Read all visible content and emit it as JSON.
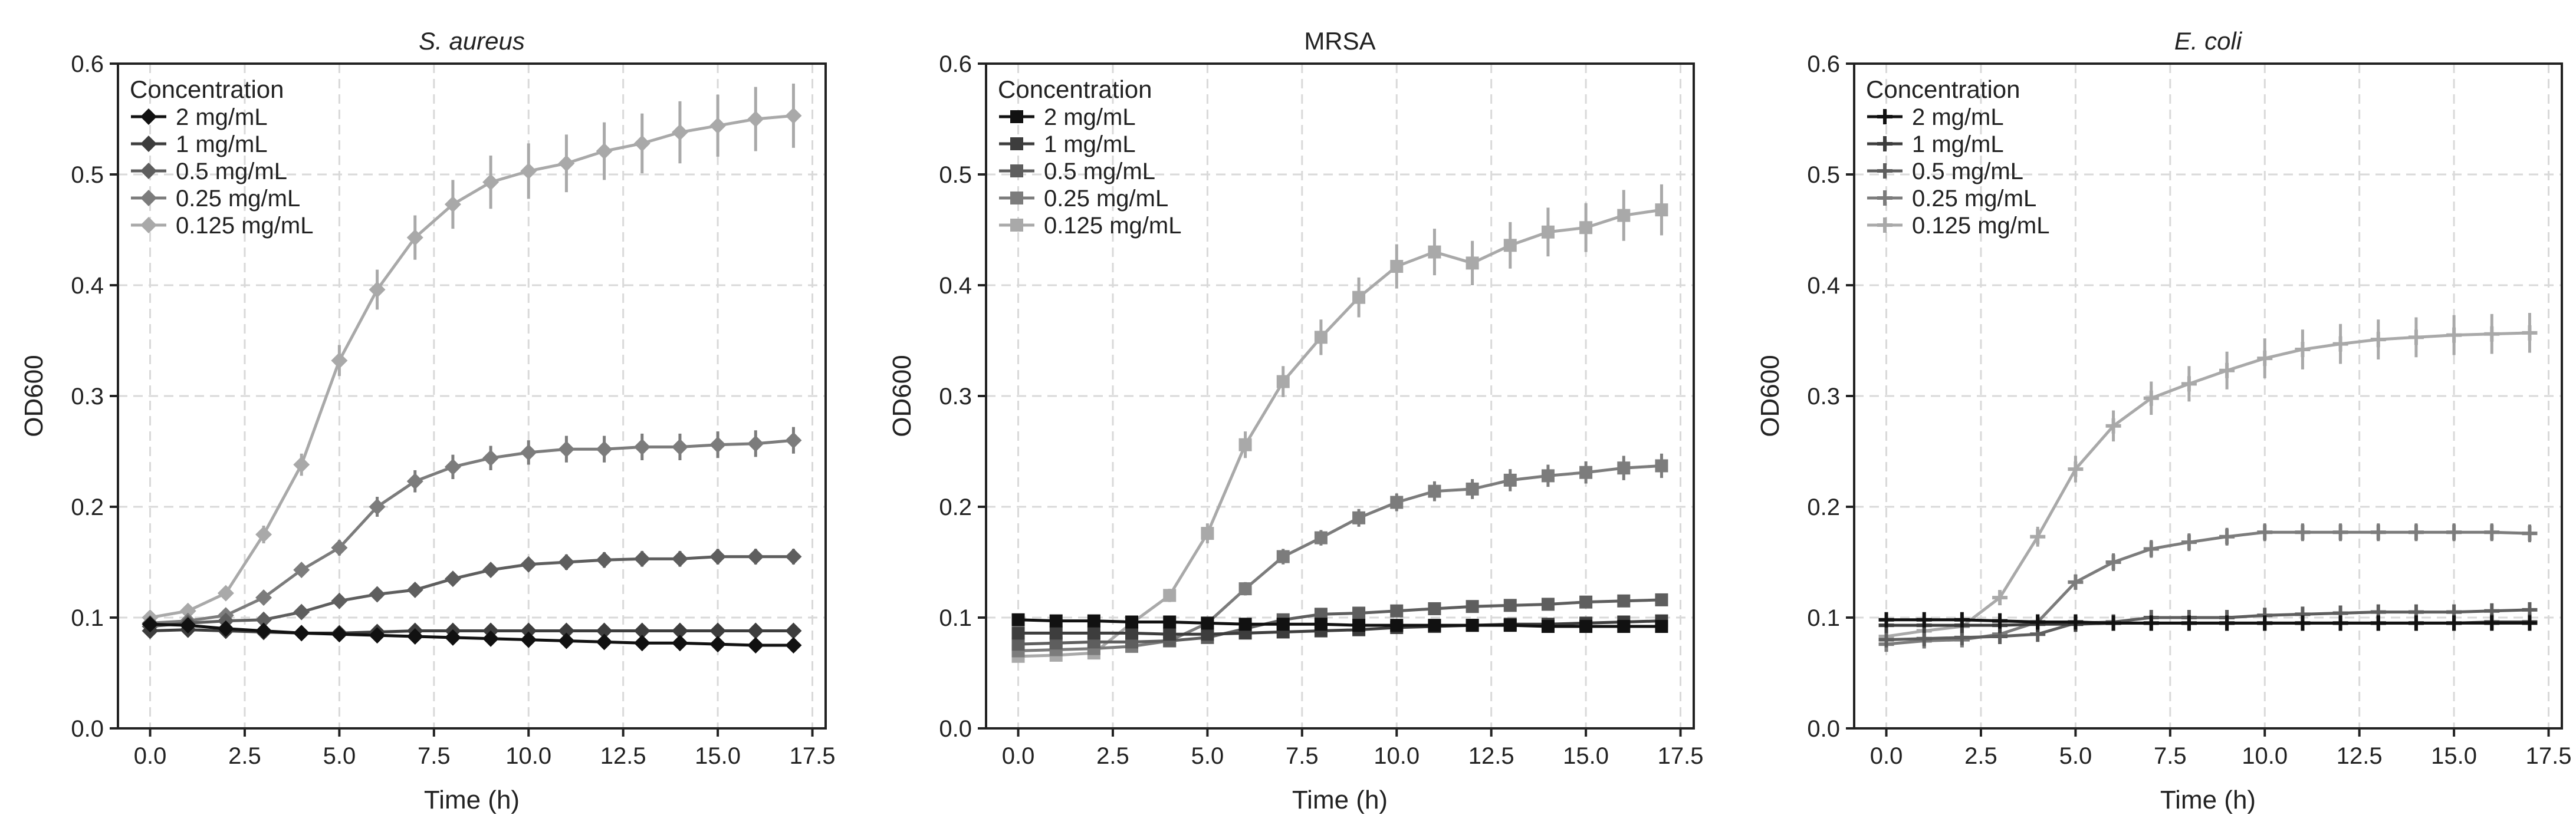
{
  "chart_data": [
    {
      "type": "line",
      "title": "S. aureus",
      "title_italic": true,
      "xlabel": "Time (h)",
      "ylabel": "OD600",
      "xlim": [
        -0.85,
        17.85
      ],
      "ylim": [
        0,
        0.6
      ],
      "xticks": [
        "0.0",
        "2.5",
        "5.0",
        "7.5",
        "10.0",
        "12.5",
        "15.0",
        "17.5"
      ],
      "yticks": [
        "0.0",
        "0.1",
        "0.2",
        "0.3",
        "0.4",
        "0.5",
        "0.6"
      ],
      "grid": true,
      "legend_title": "Concentration",
      "legend_position": "top-left",
      "marker": "diamond",
      "x": [
        0,
        1,
        2,
        3,
        4,
        5,
        6,
        7,
        8,
        9,
        10,
        11,
        12,
        13,
        14,
        15,
        16,
        17
      ],
      "series": [
        {
          "name": "2 mg/mL",
          "color": "#111111",
          "values": [
            0.094,
            0.093,
            0.09,
            0.088,
            0.086,
            0.085,
            0.084,
            0.083,
            0.082,
            0.081,
            0.08,
            0.079,
            0.078,
            0.077,
            0.077,
            0.076,
            0.075,
            0.075
          ],
          "errors": [
            0.004,
            0.004,
            0.004,
            0.003,
            0.003,
            0.003,
            0.003,
            0.003,
            0.003,
            0.003,
            0.003,
            0.003,
            0.003,
            0.003,
            0.003,
            0.003,
            0.003,
            0.003
          ]
        },
        {
          "name": "1 mg/mL",
          "color": "#3d3d3d",
          "values": [
            0.088,
            0.089,
            0.088,
            0.087,
            0.086,
            0.086,
            0.087,
            0.088,
            0.088,
            0.088,
            0.088,
            0.088,
            0.088,
            0.088,
            0.088,
            0.088,
            0.088,
            0.088
          ],
          "errors": [
            0.003,
            0.003,
            0.003,
            0.003,
            0.003,
            0.003,
            0.003,
            0.003,
            0.003,
            0.003,
            0.003,
            0.003,
            0.003,
            0.003,
            0.003,
            0.003,
            0.003,
            0.003
          ]
        },
        {
          "name": "0.5 mg/mL",
          "color": "#5e5e5e",
          "values": [
            0.092,
            0.095,
            0.097,
            0.098,
            0.105,
            0.115,
            0.121,
            0.125,
            0.135,
            0.143,
            0.148,
            0.15,
            0.152,
            0.153,
            0.153,
            0.155,
            0.155,
            0.155
          ],
          "errors": [
            0.004,
            0.004,
            0.004,
            0.004,
            0.005,
            0.005,
            0.005,
            0.005,
            0.006,
            0.006,
            0.006,
            0.007,
            0.007,
            0.007,
            0.007,
            0.007,
            0.007,
            0.007
          ]
        },
        {
          "name": "0.25 mg/mL",
          "color": "#7c7c7c",
          "values": [
            0.095,
            0.097,
            0.102,
            0.118,
            0.143,
            0.163,
            0.2,
            0.223,
            0.236,
            0.244,
            0.249,
            0.252,
            0.252,
            0.254,
            0.254,
            0.256,
            0.257,
            0.26
          ],
          "errors": [
            0.004,
            0.004,
            0.005,
            0.005,
            0.006,
            0.007,
            0.009,
            0.01,
            0.011,
            0.011,
            0.011,
            0.012,
            0.012,
            0.012,
            0.012,
            0.012,
            0.012,
            0.012
          ]
        },
        {
          "name": "0.125 mg/mL",
          "color": "#a9a9a9",
          "values": [
            0.1,
            0.106,
            0.122,
            0.175,
            0.238,
            0.332,
            0.396,
            0.443,
            0.473,
            0.493,
            0.503,
            0.51,
            0.521,
            0.528,
            0.538,
            0.544,
            0.55,
            0.553
          ],
          "errors": [
            0.004,
            0.005,
            0.006,
            0.008,
            0.01,
            0.014,
            0.018,
            0.02,
            0.022,
            0.024,
            0.025,
            0.026,
            0.026,
            0.027,
            0.028,
            0.028,
            0.029,
            0.029
          ]
        }
      ]
    },
    {
      "type": "line",
      "title": "MRSA",
      "title_italic": false,
      "xlabel": "Time (h)",
      "ylabel": "OD600",
      "xlim": [
        -0.85,
        17.85
      ],
      "ylim": [
        0,
        0.6
      ],
      "xticks": [
        "0.0",
        "2.5",
        "5.0",
        "7.5",
        "10.0",
        "12.5",
        "15.0",
        "17.5"
      ],
      "yticks": [
        "0.0",
        "0.1",
        "0.2",
        "0.3",
        "0.4",
        "0.5",
        "0.6"
      ],
      "grid": true,
      "legend_title": "Concentration",
      "legend_position": "top-left",
      "marker": "square",
      "x": [
        0,
        1,
        2,
        3,
        4,
        5,
        6,
        7,
        8,
        9,
        10,
        11,
        12,
        13,
        14,
        15,
        16,
        17
      ],
      "series": [
        {
          "name": "2 mg/mL",
          "color": "#111111",
          "values": [
            0.098,
            0.097,
            0.097,
            0.096,
            0.096,
            0.095,
            0.094,
            0.094,
            0.094,
            0.093,
            0.093,
            0.093,
            0.093,
            0.093,
            0.092,
            0.092,
            0.092,
            0.092
          ],
          "errors": [
            0.003,
            0.003,
            0.003,
            0.003,
            0.003,
            0.003,
            0.003,
            0.003,
            0.003,
            0.003,
            0.003,
            0.003,
            0.003,
            0.003,
            0.003,
            0.003,
            0.003,
            0.003
          ]
        },
        {
          "name": "1 mg/mL",
          "color": "#3d3d3d",
          "values": [
            0.086,
            0.086,
            0.086,
            0.086,
            0.085,
            0.085,
            0.086,
            0.087,
            0.088,
            0.089,
            0.091,
            0.092,
            0.093,
            0.094,
            0.094,
            0.095,
            0.096,
            0.097
          ],
          "errors": [
            0.003,
            0.003,
            0.003,
            0.003,
            0.003,
            0.003,
            0.003,
            0.003,
            0.003,
            0.003,
            0.003,
            0.003,
            0.003,
            0.003,
            0.003,
            0.003,
            0.003,
            0.003
          ]
        },
        {
          "name": "0.5 mg/mL",
          "color": "#5e5e5e",
          "values": [
            0.076,
            0.077,
            0.078,
            0.078,
            0.079,
            0.082,
            0.09,
            0.098,
            0.103,
            0.104,
            0.106,
            0.108,
            0.11,
            0.111,
            0.112,
            0.114,
            0.115,
            0.116
          ],
          "errors": [
            0.003,
            0.003,
            0.003,
            0.003,
            0.003,
            0.003,
            0.004,
            0.004,
            0.004,
            0.004,
            0.004,
            0.004,
            0.004,
            0.004,
            0.004,
            0.004,
            0.004,
            0.004
          ]
        },
        {
          "name": "0.25 mg/mL",
          "color": "#7c7c7c",
          "values": [
            0.07,
            0.071,
            0.072,
            0.074,
            0.079,
            0.095,
            0.126,
            0.155,
            0.172,
            0.19,
            0.204,
            0.214,
            0.216,
            0.224,
            0.228,
            0.231,
            0.235,
            0.237
          ],
          "errors": [
            0.003,
            0.003,
            0.003,
            0.003,
            0.004,
            0.005,
            0.006,
            0.007,
            0.007,
            0.008,
            0.008,
            0.009,
            0.009,
            0.01,
            0.01,
            0.01,
            0.011,
            0.011
          ]
        },
        {
          "name": "0.125 mg/mL",
          "color": "#a9a9a9",
          "values": [
            0.065,
            0.066,
            0.068,
            0.095,
            0.12,
            0.176,
            0.256,
            0.313,
            0.353,
            0.389,
            0.417,
            0.43,
            0.42,
            0.436,
            0.448,
            0.452,
            0.463,
            0.468
          ],
          "errors": [
            0.003,
            0.003,
            0.004,
            0.005,
            0.006,
            0.009,
            0.012,
            0.014,
            0.016,
            0.018,
            0.02,
            0.021,
            0.02,
            0.021,
            0.022,
            0.022,
            0.023,
            0.023
          ]
        }
      ]
    },
    {
      "type": "line",
      "title": "E. coli",
      "title_italic": true,
      "xlabel": "Time (h)",
      "ylabel": "OD600",
      "xlim": [
        -0.85,
        17.85
      ],
      "ylim": [
        0,
        0.6
      ],
      "xticks": [
        "0.0",
        "2.5",
        "5.0",
        "7.5",
        "10.0",
        "12.5",
        "15.0",
        "17.5"
      ],
      "yticks": [
        "0.0",
        "0.1",
        "0.2",
        "0.3",
        "0.4",
        "0.5",
        "0.6"
      ],
      "grid": true,
      "legend_title": "Concentration",
      "legend_position": "top-left",
      "marker": "plus",
      "x": [
        0,
        1,
        2,
        3,
        4,
        5,
        6,
        7,
        8,
        9,
        10,
        11,
        12,
        13,
        14,
        15,
        16,
        17
      ],
      "series": [
        {
          "name": "2 mg/mL",
          "color": "#111111",
          "values": [
            0.098,
            0.098,
            0.098,
            0.097,
            0.096,
            0.096,
            0.095,
            0.095,
            0.095,
            0.095,
            0.095,
            0.095,
            0.095,
            0.095,
            0.095,
            0.095,
            0.095,
            0.095
          ],
          "errors": [
            0.003,
            0.003,
            0.003,
            0.003,
            0.003,
            0.003,
            0.003,
            0.003,
            0.003,
            0.003,
            0.003,
            0.003,
            0.003,
            0.003,
            0.003,
            0.003,
            0.003,
            0.003
          ]
        },
        {
          "name": "1 mg/mL",
          "color": "#3d3d3d",
          "values": [
            0.093,
            0.093,
            0.093,
            0.093,
            0.094,
            0.094,
            0.095,
            0.095,
            0.095,
            0.095,
            0.095,
            0.095,
            0.095,
            0.095,
            0.095,
            0.095,
            0.096,
            0.096
          ],
          "errors": [
            0.003,
            0.003,
            0.003,
            0.003,
            0.003,
            0.003,
            0.003,
            0.003,
            0.003,
            0.003,
            0.003,
            0.003,
            0.003,
            0.003,
            0.003,
            0.003,
            0.003,
            0.003
          ]
        },
        {
          "name": "0.5 mg/mL",
          "color": "#5e5e5e",
          "values": [
            0.08,
            0.081,
            0.082,
            0.083,
            0.085,
            0.095,
            0.096,
            0.1,
            0.1,
            0.1,
            0.102,
            0.103,
            0.104,
            0.105,
            0.105,
            0.105,
            0.106,
            0.107
          ],
          "errors": [
            0.003,
            0.003,
            0.003,
            0.003,
            0.003,
            0.003,
            0.003,
            0.004,
            0.004,
            0.004,
            0.004,
            0.004,
            0.004,
            0.004,
            0.004,
            0.004,
            0.004,
            0.004
          ]
        },
        {
          "name": "0.25 mg/mL",
          "color": "#7c7c7c",
          "values": [
            0.076,
            0.079,
            0.08,
            0.085,
            0.096,
            0.132,
            0.15,
            0.162,
            0.168,
            0.173,
            0.177,
            0.177,
            0.177,
            0.177,
            0.177,
            0.177,
            0.177,
            0.176
          ],
          "errors": [
            0.003,
            0.003,
            0.003,
            0.004,
            0.005,
            0.007,
            0.008,
            0.008,
            0.008,
            0.008,
            0.008,
            0.008,
            0.008,
            0.008,
            0.008,
            0.008,
            0.008,
            0.008
          ]
        },
        {
          "name": "0.125 mg/mL",
          "color": "#a9a9a9",
          "values": [
            0.083,
            0.088,
            0.092,
            0.118,
            0.173,
            0.234,
            0.273,
            0.298,
            0.311,
            0.323,
            0.334,
            0.342,
            0.347,
            0.351,
            0.353,
            0.355,
            0.356,
            0.357
          ],
          "errors": [
            0.004,
            0.004,
            0.005,
            0.006,
            0.009,
            0.012,
            0.014,
            0.015,
            0.016,
            0.017,
            0.018,
            0.018,
            0.018,
            0.018,
            0.018,
            0.018,
            0.018,
            0.018
          ]
        }
      ]
    }
  ]
}
